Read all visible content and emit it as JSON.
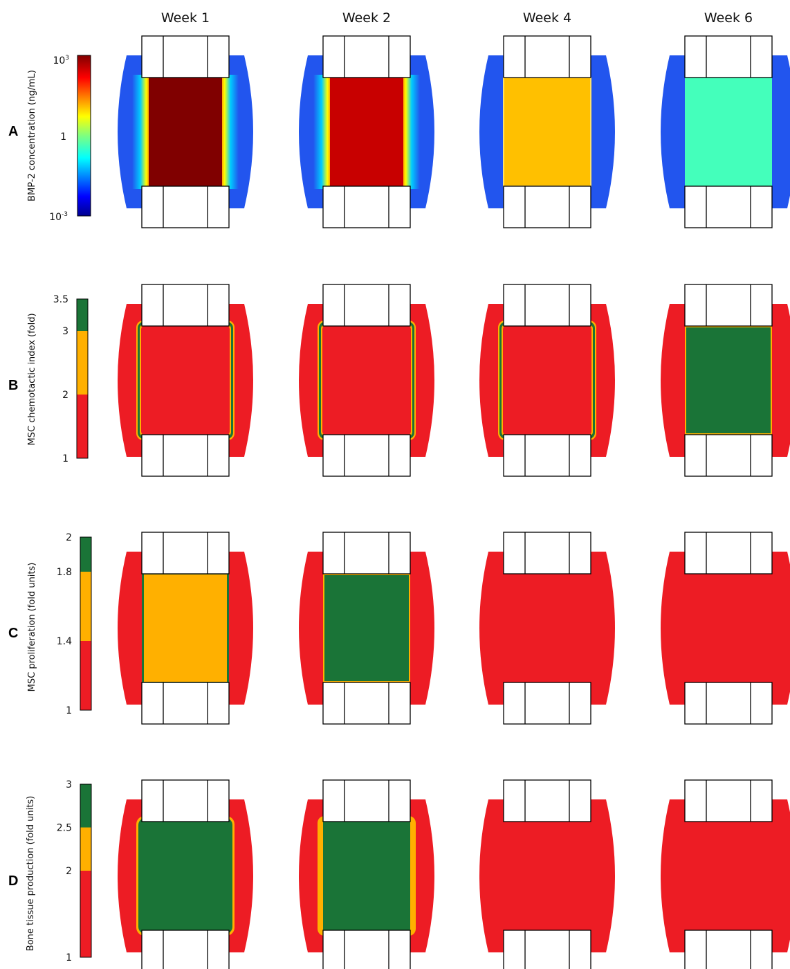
{
  "columns": [
    "Week 1",
    "Week 2",
    "Week 4",
    "Week 6"
  ],
  "colors": {
    "red": "#ED1C24",
    "orange": "#FFB000",
    "green": "#1A7437",
    "blue": "#2255EE",
    "dark_red": "#800000",
    "medium_red": "#C80000",
    "amber": "#FFC000",
    "aqua": "#44FFBB",
    "outline": "#000000"
  },
  "rows": [
    {
      "letter": "A",
      "axis_title": "BMP-2 concentration (ng/mL)",
      "scale": "log",
      "colormap": "jet",
      "ticks": [
        {
          "base": "10",
          "exp": "3",
          "value": 1000
        },
        {
          "base": "1",
          "exp": "",
          "value": 1
        },
        {
          "base": "10",
          "exp": "-3",
          "value": 0.001
        }
      ],
      "panels": [
        {
          "week": "Week 1",
          "center": "dark_red",
          "rim": "gradient",
          "outer": "blue"
        },
        {
          "week": "Week 2",
          "center": "medium_red",
          "rim": "gradient",
          "outer": "blue"
        },
        {
          "week": "Week 4",
          "center": "amber",
          "rim": "thin",
          "outer": "blue"
        },
        {
          "week": "Week 6",
          "center": "aqua",
          "rim": "none",
          "outer": "blue"
        }
      ]
    },
    {
      "letter": "B",
      "axis_title": "MSC chemotactic index (fold)",
      "scale": "linear",
      "ticks": [
        {
          "label": "3.5",
          "value": 3.5
        },
        {
          "label": "3",
          "value": 3
        },
        {
          "label": "2",
          "value": 2
        },
        {
          "label": "1",
          "value": 1
        }
      ],
      "bands": [
        {
          "from": 1,
          "to": 2,
          "color": "red"
        },
        {
          "from": 2,
          "to": 3,
          "color": "orange"
        },
        {
          "from": 3,
          "to": 3.5,
          "color": "green"
        }
      ],
      "panels": [
        {
          "week": "Week 1",
          "center": "red",
          "border": "green-orange",
          "outer": "red"
        },
        {
          "week": "Week 2",
          "center": "red",
          "border": "green-orange",
          "outer": "red"
        },
        {
          "week": "Week 4",
          "center": "red",
          "border": "green-orange",
          "outer": "red"
        },
        {
          "week": "Week 6",
          "center": "green",
          "border": "orange",
          "outer": "red"
        }
      ]
    },
    {
      "letter": "C",
      "axis_title": "MSC proliferation (fold units)",
      "scale": "linear",
      "ticks": [
        {
          "label": "2",
          "value": 2
        },
        {
          "label": "1.8",
          "value": 1.8
        },
        {
          "label": "1.4",
          "value": 1.4
        },
        {
          "label": "1",
          "value": 1
        }
      ],
      "bands": [
        {
          "from": 1,
          "to": 1.4,
          "color": "red"
        },
        {
          "from": 1.4,
          "to": 1.8,
          "color": "orange"
        },
        {
          "from": 1.8,
          "to": 2,
          "color": "green"
        }
      ],
      "panels": [
        {
          "week": "Week 1",
          "center": "orange",
          "border": "green",
          "outer": "red"
        },
        {
          "week": "Week 2",
          "center": "green",
          "border": "orange",
          "outer": "red"
        },
        {
          "week": "Week 4",
          "center": "red",
          "border": "none",
          "outer": "red"
        },
        {
          "week": "Week 6",
          "center": "red",
          "border": "none",
          "outer": "red"
        }
      ]
    },
    {
      "letter": "D",
      "axis_title": "Bone tissue production (fold units)",
      "scale": "linear",
      "ticks": [
        {
          "label": "3",
          "value": 3
        },
        {
          "label": "2.5",
          "value": 2.5
        },
        {
          "label": "2",
          "value": 2
        },
        {
          "label": "1",
          "value": 1
        }
      ],
      "bands": [
        {
          "from": 1,
          "to": 2,
          "color": "red"
        },
        {
          "from": 2,
          "to": 2.5,
          "color": "orange"
        },
        {
          "from": 2.5,
          "to": 3,
          "color": "green"
        }
      ],
      "panels": [
        {
          "week": "Week 1",
          "center": "green",
          "border": "orange-thin",
          "outer": "red"
        },
        {
          "week": "Week 2",
          "center": "green",
          "border": "orange-thick",
          "outer": "red"
        },
        {
          "week": "Week 4",
          "center": "red",
          "border": "none",
          "outer": "red"
        },
        {
          "week": "Week 6",
          "center": "red",
          "border": "none",
          "outer": "red"
        }
      ]
    }
  ]
}
